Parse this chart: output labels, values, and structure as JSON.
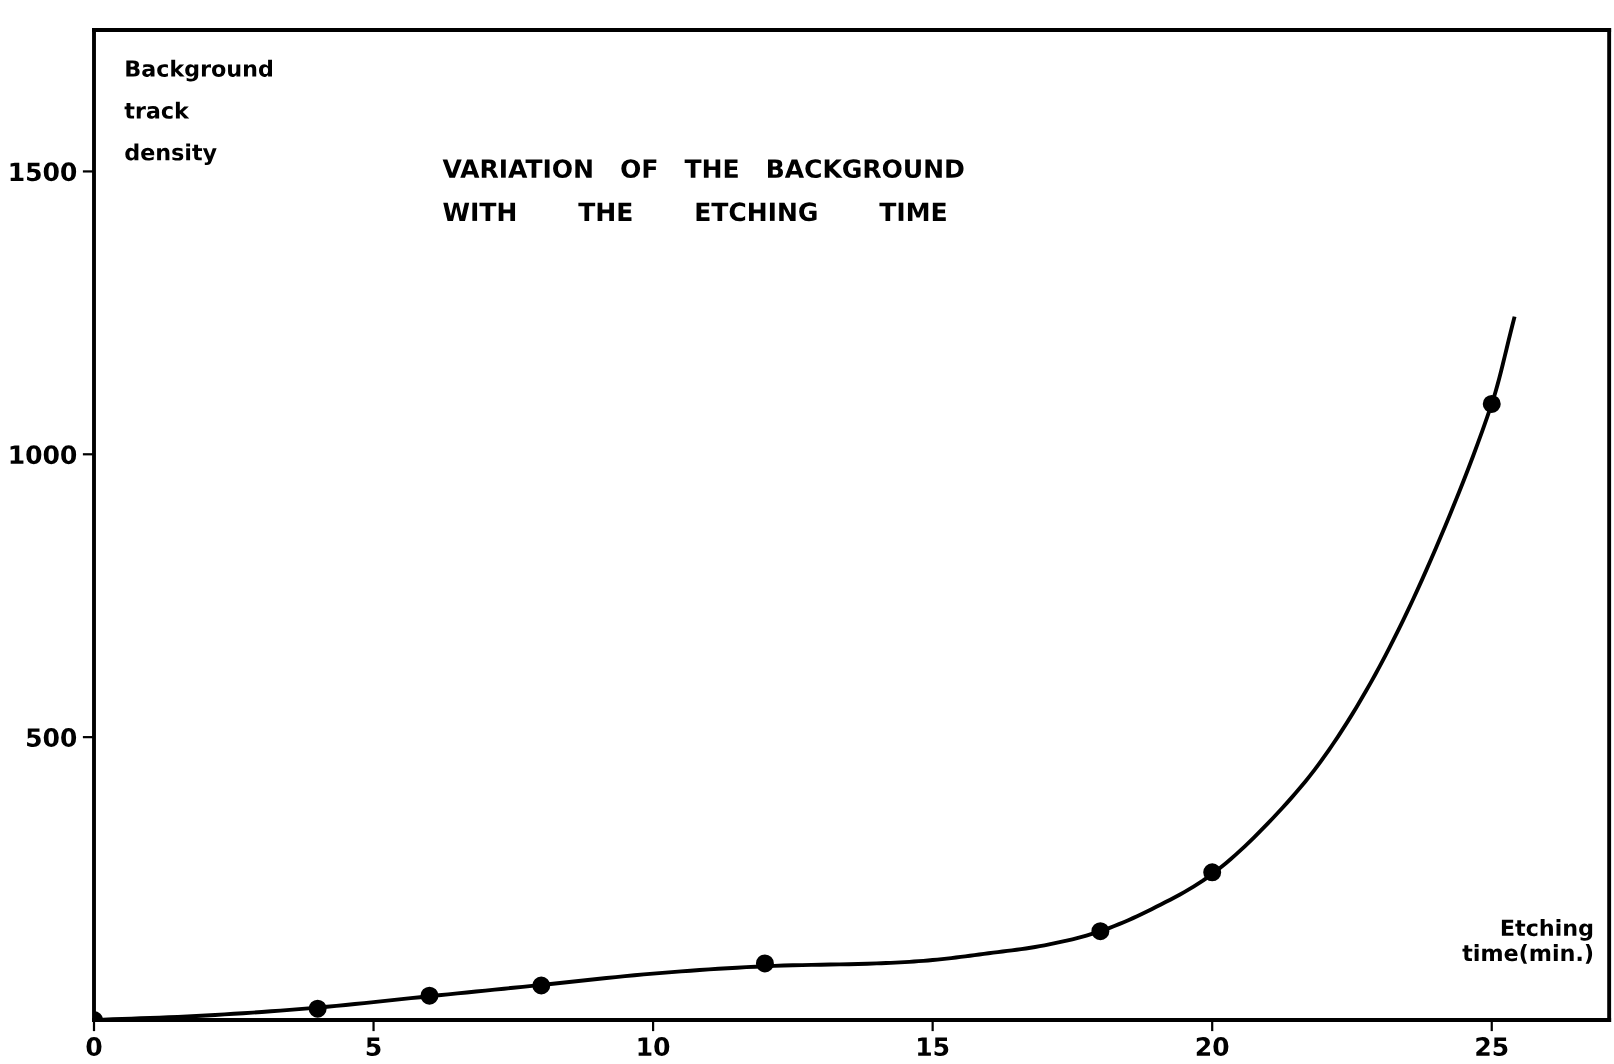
{
  "chart_data": {
    "type": "scatter",
    "title": "VARIATION   OF   THE   BACKGROUND\nWITH       THE       ETCHING       TIME",
    "xlabel": "Etching\ntime(min.)",
    "ylabel": "Background\ntrack\ndensity",
    "xlim": [
      0,
      27.1
    ],
    "ylim": [
      0,
      1750
    ],
    "xticks": [
      0,
      5,
      10,
      15,
      20,
      25
    ],
    "yticks": [
      500,
      1000,
      1500
    ],
    "grid": false,
    "series": [
      {
        "color": "#000000",
        "marker": "circle",
        "x": [
          0,
          4,
          6,
          8,
          12,
          18,
          20,
          25
        ],
        "values": [
          0,
          20,
          43,
          61,
          100,
          157,
          261,
          1089
        ]
      },
      {
        "type": "line",
        "color": "#000000",
        "marker": "none",
        "line_style": "solid",
        "x": [
          0,
          2,
          4,
          6,
          8,
          10,
          12,
          14,
          15,
          16,
          17,
          18,
          19,
          20,
          21,
          22,
          23,
          24,
          25,
          25.4
        ],
        "values": [
          0,
          8,
          22,
          42,
          62,
          82,
          95,
          100,
          106,
          118,
          132,
          157,
          200,
          258,
          348,
          465,
          626,
          834,
          1089,
          1240
        ]
      }
    ]
  }
}
